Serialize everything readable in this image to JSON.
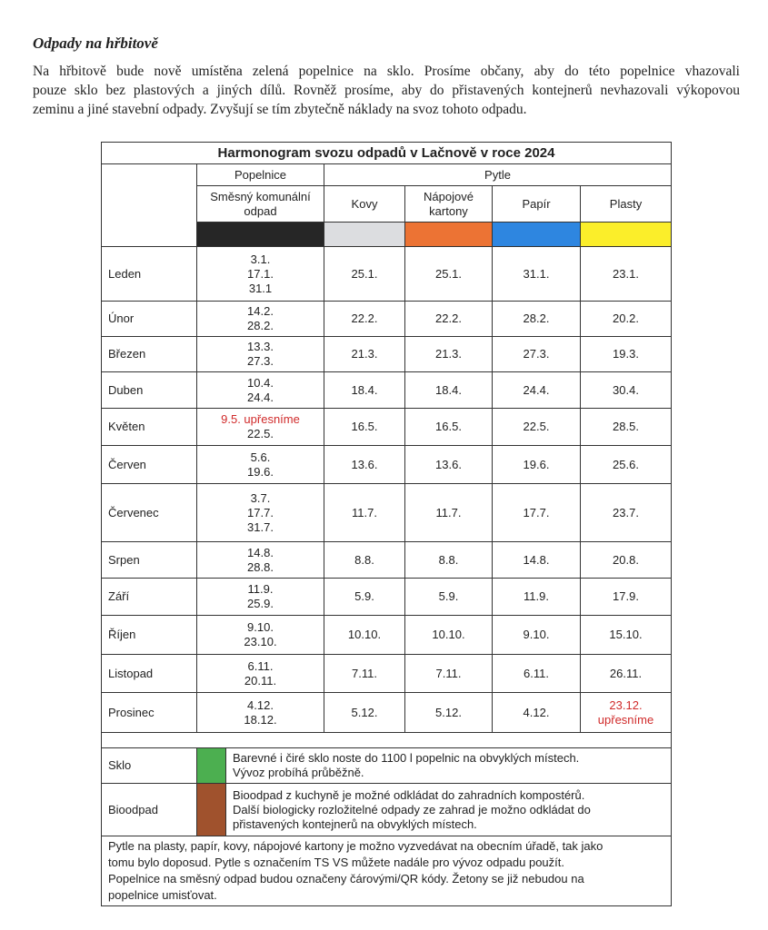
{
  "heading": "Odpady na hřbitově",
  "intro": [
    "Na hřbitově bude nově umístěna zelená popelnice na sklo. Prosíme občany, aby do této popelnice vhazovali",
    "pouze sklo bez plastových a jiných dílů. Rovněž prosíme, aby do přistavených kontejnerů nevhazovali výkopovou",
    "zeminu a jiné stavební odpady. Zvyšují se tím zbytečně náklady na svoz tohoto odpadu."
  ],
  "table": {
    "title": "Harmonogram svozu odpadů v Lačnově v roce 2024",
    "groups": [
      "Popelnice",
      "Pytle"
    ],
    "columns": [
      {
        "label": "Směsný komunální odpad",
        "color": "#262626"
      },
      {
        "label": "Kovy",
        "color": "#dcdde0"
      },
      {
        "label": "Nápojové kartony",
        "color": "#ec7334"
      },
      {
        "label": "Papír",
        "color": "#2e86e0"
      },
      {
        "label": "Plasty",
        "color": "#fbee2a"
      }
    ],
    "rows": [
      {
        "month": "Leden",
        "cells": [
          [
            "3.1.",
            "17.1.",
            "31.1"
          ],
          "25.1.",
          "25.1.",
          "31.1.",
          "23.1."
        ]
      },
      {
        "month": "Únor",
        "cells": [
          [
            "14.2.",
            "28.2."
          ],
          "22.2.",
          "22.2.",
          "28.2.",
          "20.2."
        ]
      },
      {
        "month": "Březen",
        "cells": [
          [
            "13.3.",
            "27.3."
          ],
          "21.3.",
          "21.3.",
          "27.3.",
          "19.3."
        ]
      },
      {
        "month": "Duben",
        "cells": [
          [
            "10.4.",
            "24.4."
          ],
          "18.4.",
          "18.4.",
          "24.4.",
          "30.4."
        ]
      },
      {
        "month": "Květen",
        "cells": [
          [
            {
              "text": "9.5. upřesníme",
              "color": "#d02a2a"
            },
            "22.5."
          ],
          "16.5.",
          "16.5.",
          "22.5.",
          "28.5."
        ]
      },
      {
        "month": "Červen",
        "cells": [
          [
            "5.6.",
            "19.6."
          ],
          "13.6.",
          "13.6.",
          "19.6.",
          "25.6."
        ]
      },
      {
        "month": "Červenec",
        "cells": [
          [
            "3.7.",
            "17.7.",
            "31.7."
          ],
          "11.7.",
          "11.7.",
          "17.7.",
          "23.7."
        ]
      },
      {
        "month": "Srpen",
        "cells": [
          [
            "14.8.",
            "28.8."
          ],
          "8.8.",
          "8.8.",
          "14.8.",
          "20.8."
        ]
      },
      {
        "month": "Září",
        "cells": [
          [
            "11.9.",
            "25.9."
          ],
          "5.9.",
          "5.9.",
          "11.9.",
          "17.9."
        ]
      },
      {
        "month": "Říjen",
        "cells": [
          [
            "9.10.",
            "23.10."
          ],
          "10.10.",
          "10.10.",
          "9.10.",
          "15.10."
        ]
      },
      {
        "month": "Listopad",
        "cells": [
          [
            "6.11.",
            "20.11."
          ],
          "7.11.",
          "7.11.",
          "6.11.",
          "26.11."
        ]
      },
      {
        "month": "Prosinec",
        "cells": [
          [
            "4.12.",
            "18.12."
          ],
          "5.12.",
          "5.12.",
          "4.12.",
          [
            {
              "text": "23.12.",
              "color": "#d02a2a"
            },
            {
              "text": "upřesníme",
              "color": "#d02a2a"
            }
          ]
        ]
      }
    ],
    "notes": [
      {
        "label": "Sklo",
        "color": "#4caf50",
        "lines": [
          "Barevné i čiré sklo noste do 1100 l popelnic na obvyklých místech.",
          "Vývoz probíhá průběžně."
        ]
      },
      {
        "label": "Bioodpad",
        "color": "#a0522d",
        "lines": [
          "Bioodpad z kuchyně je možné odkládat do zahradních kompostérů.",
          "Další biologicky rozložitelné odpady ze zahrad je možno odkládat do",
          "přistavených kontejnerů na obvyklých místech."
        ]
      }
    ],
    "footer": [
      "Pytle na plasty, papír, kovy, nápojové kartony je možno vyzvedávat na obecním úřadě, tak jako",
      "tomu bylo doposud. Pytle s označením TS VS můžete nadále pro vývoz odpadu použít.",
      "Popelnice na směsný odpad budou označeny čárovými/QR kódy. Žetony se již nebudou na",
      "popelnice umisťovat."
    ]
  }
}
